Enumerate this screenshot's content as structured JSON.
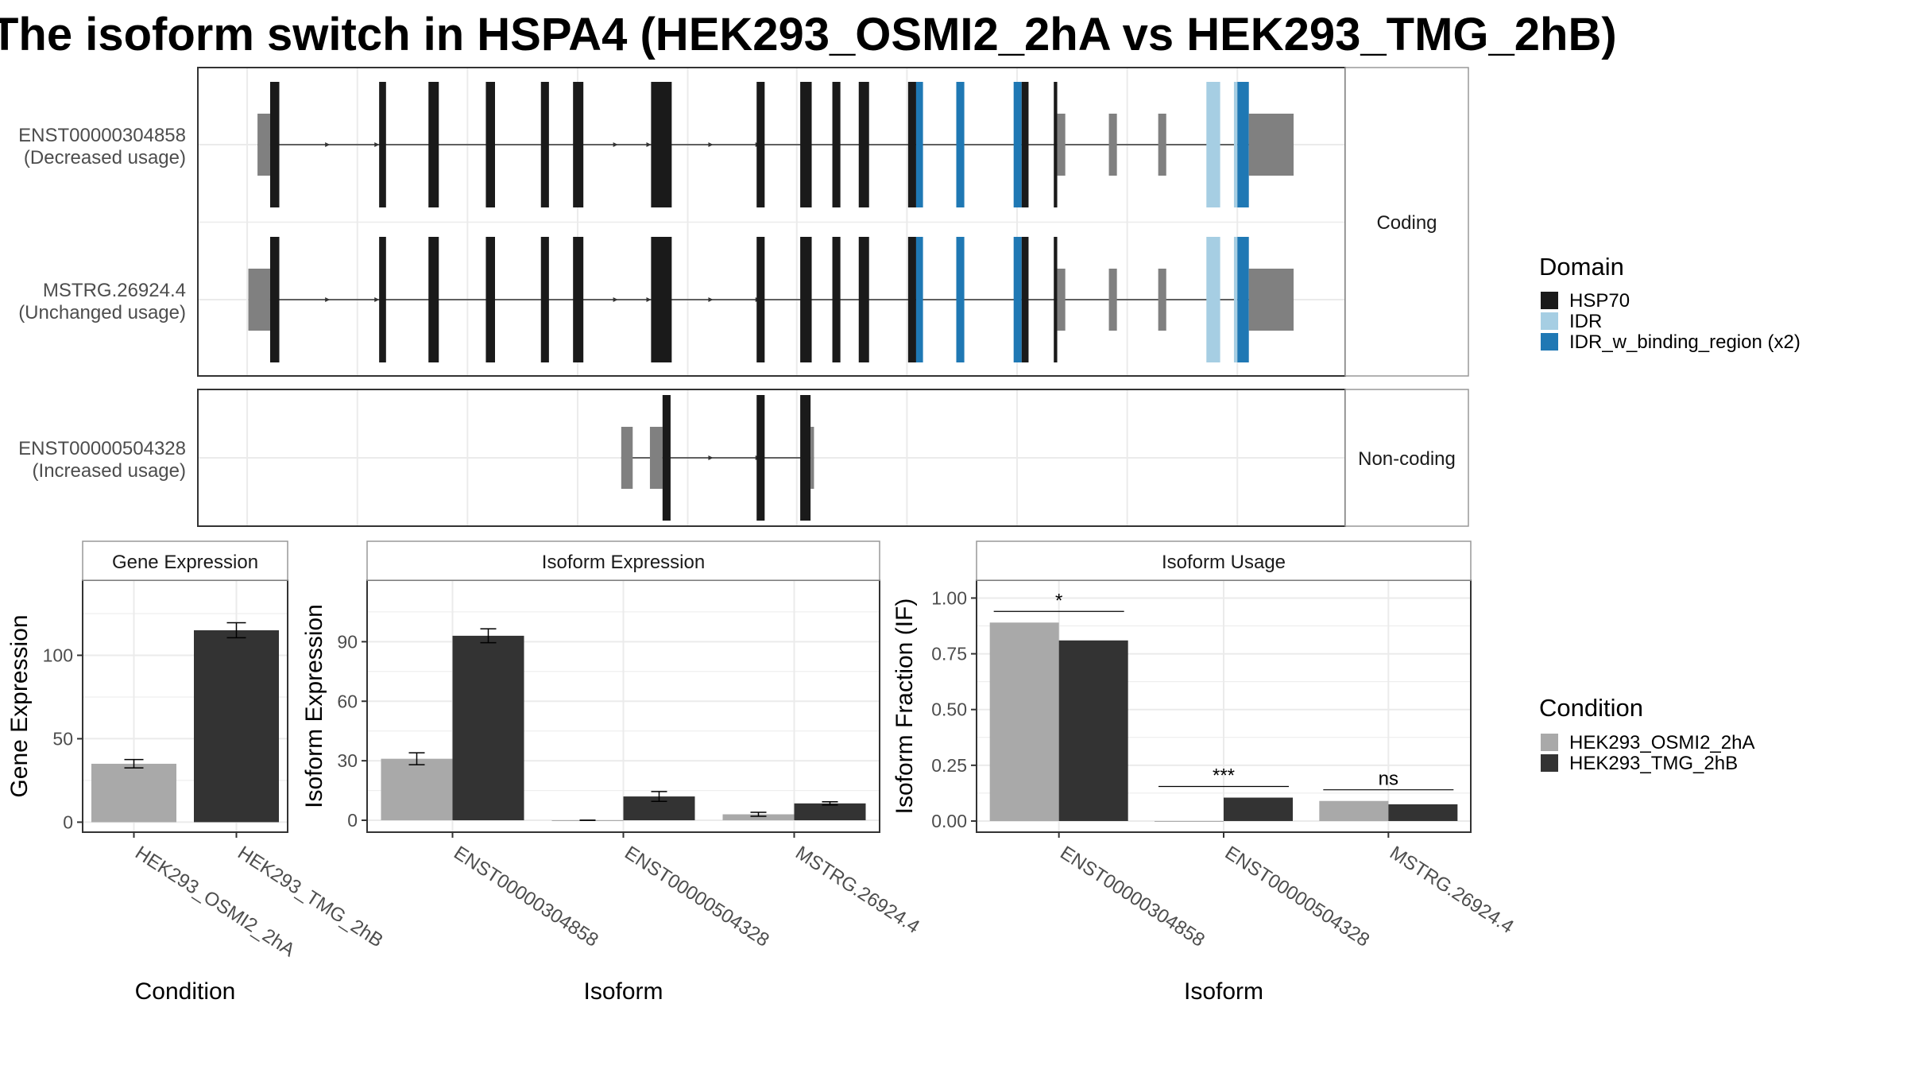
{
  "title": "The isoform switch in HSPA4 (HEK293_OSMI2_2hA vs HEK293_TMG_2hB)",
  "colors": {
    "HSP70": "#1a1a1a",
    "IDR": "#a6cee3",
    "IDR_w_binding_region": "#1f78b4",
    "utr": "#808080",
    "condition_a": "#a9a9a9",
    "condition_b": "#333333",
    "grid": "#ebebeb",
    "border": "#333333",
    "strip_border": "#999999"
  },
  "legends": {
    "domain": {
      "title": "Domain",
      "entries": [
        {
          "label": "HSP70",
          "key": "HSP70"
        },
        {
          "label": "IDR",
          "key": "IDR"
        },
        {
          "label": "IDR_w_binding_region (x2)",
          "key": "IDR_w_binding_region"
        }
      ]
    },
    "condition": {
      "title": "Condition",
      "entries": [
        {
          "label": "HEK293_OSMI2_2hA",
          "key": "condition_a"
        },
        {
          "label": "HEK293_TMG_2hB",
          "key": "condition_b"
        }
      ]
    }
  },
  "chart_data": [
    {
      "type": "gene-structure",
      "panels": [
        {
          "strip": "Coding",
          "transcripts": [
            {
              "name": "ENST00000304858",
              "usage": "(Decreased usage)",
              "exons": [
                {
                  "start": 0.052,
                  "end": 0.063,
                  "kind": "utr"
                },
                {
                  "start": 0.063,
                  "end": 0.071,
                  "kind": "HSP70"
                },
                {
                  "start": 0.158,
                  "end": 0.164,
                  "kind": "HSP70"
                },
                {
                  "start": 0.201,
                  "end": 0.21,
                  "kind": "HSP70"
                },
                {
                  "start": 0.251,
                  "end": 0.259,
                  "kind": "HSP70"
                },
                {
                  "start": 0.299,
                  "end": 0.306,
                  "kind": "HSP70"
                },
                {
                  "start": 0.327,
                  "end": 0.336,
                  "kind": "HSP70"
                },
                {
                  "start": 0.395,
                  "end": 0.413,
                  "kind": "HSP70"
                },
                {
                  "start": 0.487,
                  "end": 0.494,
                  "kind": "HSP70"
                },
                {
                  "start": 0.525,
                  "end": 0.535,
                  "kind": "HSP70"
                },
                {
                  "start": 0.553,
                  "end": 0.56,
                  "kind": "HSP70"
                },
                {
                  "start": 0.576,
                  "end": 0.585,
                  "kind": "HSP70"
                },
                {
                  "start": 0.619,
                  "end": 0.626,
                  "kind": "HSP70"
                },
                {
                  "start": 0.626,
                  "end": 0.632,
                  "kind": "IDR_w_binding_region"
                },
                {
                  "start": 0.661,
                  "end": 0.668,
                  "kind": "IDR_w_binding_region"
                },
                {
                  "start": 0.711,
                  "end": 0.718,
                  "kind": "IDR_w_binding_region"
                },
                {
                  "start": 0.718,
                  "end": 0.724,
                  "kind": "HSP70"
                },
                {
                  "start": 0.746,
                  "end": 0.749,
                  "kind": "HSP70"
                },
                {
                  "start": 0.749,
                  "end": 0.756,
                  "kind": "utr"
                },
                {
                  "start": 0.794,
                  "end": 0.801,
                  "kind": "utr"
                },
                {
                  "start": 0.837,
                  "end": 0.844,
                  "kind": "utr"
                },
                {
                  "start": 0.879,
                  "end": 0.891,
                  "kind": "IDR"
                },
                {
                  "start": 0.903,
                  "end": 0.906,
                  "kind": "IDR"
                },
                {
                  "start": 0.906,
                  "end": 0.916,
                  "kind": "IDR_w_binding_region"
                },
                {
                  "start": 0.916,
                  "end": 0.955,
                  "kind": "utr"
                }
              ],
              "arrows": [
                0.113,
                0.156,
                0.364,
                0.393,
                0.447,
                0.488
              ]
            },
            {
              "name": "MSTRG.26924.4",
              "usage": "(Unchanged usage)",
              "exons": [
                {
                  "start": 0.044,
                  "end": 0.063,
                  "kind": "utr"
                },
                {
                  "start": 0.063,
                  "end": 0.071,
                  "kind": "HSP70"
                },
                {
                  "start": 0.158,
                  "end": 0.164,
                  "kind": "HSP70"
                },
                {
                  "start": 0.201,
                  "end": 0.21,
                  "kind": "HSP70"
                },
                {
                  "start": 0.251,
                  "end": 0.259,
                  "kind": "HSP70"
                },
                {
                  "start": 0.299,
                  "end": 0.306,
                  "kind": "HSP70"
                },
                {
                  "start": 0.327,
                  "end": 0.336,
                  "kind": "HSP70"
                },
                {
                  "start": 0.395,
                  "end": 0.413,
                  "kind": "HSP70"
                },
                {
                  "start": 0.487,
                  "end": 0.494,
                  "kind": "HSP70"
                },
                {
                  "start": 0.525,
                  "end": 0.535,
                  "kind": "HSP70"
                },
                {
                  "start": 0.553,
                  "end": 0.56,
                  "kind": "HSP70"
                },
                {
                  "start": 0.576,
                  "end": 0.585,
                  "kind": "HSP70"
                },
                {
                  "start": 0.619,
                  "end": 0.626,
                  "kind": "HSP70"
                },
                {
                  "start": 0.626,
                  "end": 0.632,
                  "kind": "IDR_w_binding_region"
                },
                {
                  "start": 0.661,
                  "end": 0.668,
                  "kind": "IDR_w_binding_region"
                },
                {
                  "start": 0.711,
                  "end": 0.718,
                  "kind": "IDR_w_binding_region"
                },
                {
                  "start": 0.718,
                  "end": 0.724,
                  "kind": "HSP70"
                },
                {
                  "start": 0.746,
                  "end": 0.749,
                  "kind": "HSP70"
                },
                {
                  "start": 0.749,
                  "end": 0.756,
                  "kind": "utr"
                },
                {
                  "start": 0.794,
                  "end": 0.801,
                  "kind": "utr"
                },
                {
                  "start": 0.837,
                  "end": 0.844,
                  "kind": "utr"
                },
                {
                  "start": 0.879,
                  "end": 0.891,
                  "kind": "IDR"
                },
                {
                  "start": 0.903,
                  "end": 0.906,
                  "kind": "IDR"
                },
                {
                  "start": 0.906,
                  "end": 0.916,
                  "kind": "IDR_w_binding_region"
                },
                {
                  "start": 0.916,
                  "end": 0.955,
                  "kind": "utr"
                }
              ],
              "arrows": [
                0.113,
                0.156,
                0.364,
                0.393,
                0.447,
                0.488
              ]
            }
          ]
        },
        {
          "strip": "Non-coding",
          "transcripts": [
            {
              "name": "ENST00000504328",
              "usage": "(Increased usage)",
              "exons": [
                {
                  "start": 0.369,
                  "end": 0.379,
                  "kind": "utr"
                },
                {
                  "start": 0.394,
                  "end": 0.405,
                  "kind": "utr"
                },
                {
                  "start": 0.405,
                  "end": 0.412,
                  "kind": "HSP70"
                },
                {
                  "start": 0.487,
                  "end": 0.494,
                  "kind": "HSP70"
                },
                {
                  "start": 0.525,
                  "end": 0.534,
                  "kind": "HSP70"
                },
                {
                  "start": 0.534,
                  "end": 0.537,
                  "kind": "utr"
                }
              ],
              "arrows": [
                0.447,
                0.488
              ]
            }
          ]
        }
      ]
    },
    {
      "type": "bar",
      "title": "Gene Expression",
      "xlabel": "Condition",
      "ylabel": "Gene Expression",
      "categories": [
        "HEK293_OSMI2_2hA",
        "HEK293_TMG_2hB"
      ],
      "values": [
        35,
        115
      ],
      "errors": [
        2.5,
        4.5
      ],
      "ylim": [
        -6,
        145
      ],
      "yticks": [
        0,
        50,
        100
      ]
    },
    {
      "type": "bar",
      "title": "Isoform Expression",
      "xlabel": "Isoform",
      "ylabel": "Isoform Expression",
      "categories": [
        "ENST00000304858",
        "ENST00000504328",
        "MSTRG.26924.4"
      ],
      "series": [
        {
          "name": "HEK293_OSMI2_2hA",
          "values": [
            31,
            0,
            3
          ],
          "errors": [
            3,
            0,
            1
          ]
        },
        {
          "name": "HEK293_TMG_2hB",
          "values": [
            93,
            12,
            8.5
          ],
          "errors": [
            3.5,
            2.5,
            0.8
          ]
        }
      ],
      "ylim": [
        -6,
        121
      ],
      "yticks": [
        0,
        30,
        60,
        90
      ]
    },
    {
      "type": "bar",
      "title": "Isoform Usage",
      "xlabel": "Isoform",
      "ylabel": "Isoform Fraction (IF)",
      "categories": [
        "ENST00000304858",
        "ENST00000504328",
        "MSTRG.26924.4"
      ],
      "series": [
        {
          "name": "HEK293_OSMI2_2hA",
          "values": [
            0.89,
            0,
            0.09
          ]
        },
        {
          "name": "HEK293_TMG_2hB",
          "values": [
            0.81,
            0.105,
            0.075
          ]
        }
      ],
      "significance": [
        "*",
        "***",
        "ns"
      ],
      "ylim": [
        -0.05,
        1.08
      ],
      "yticks": [
        0,
        0.25,
        0.5,
        0.75,
        1.0
      ],
      "yticklabels": [
        "0.00",
        "0.25",
        "0.50",
        "0.75",
        "1.00"
      ]
    }
  ]
}
